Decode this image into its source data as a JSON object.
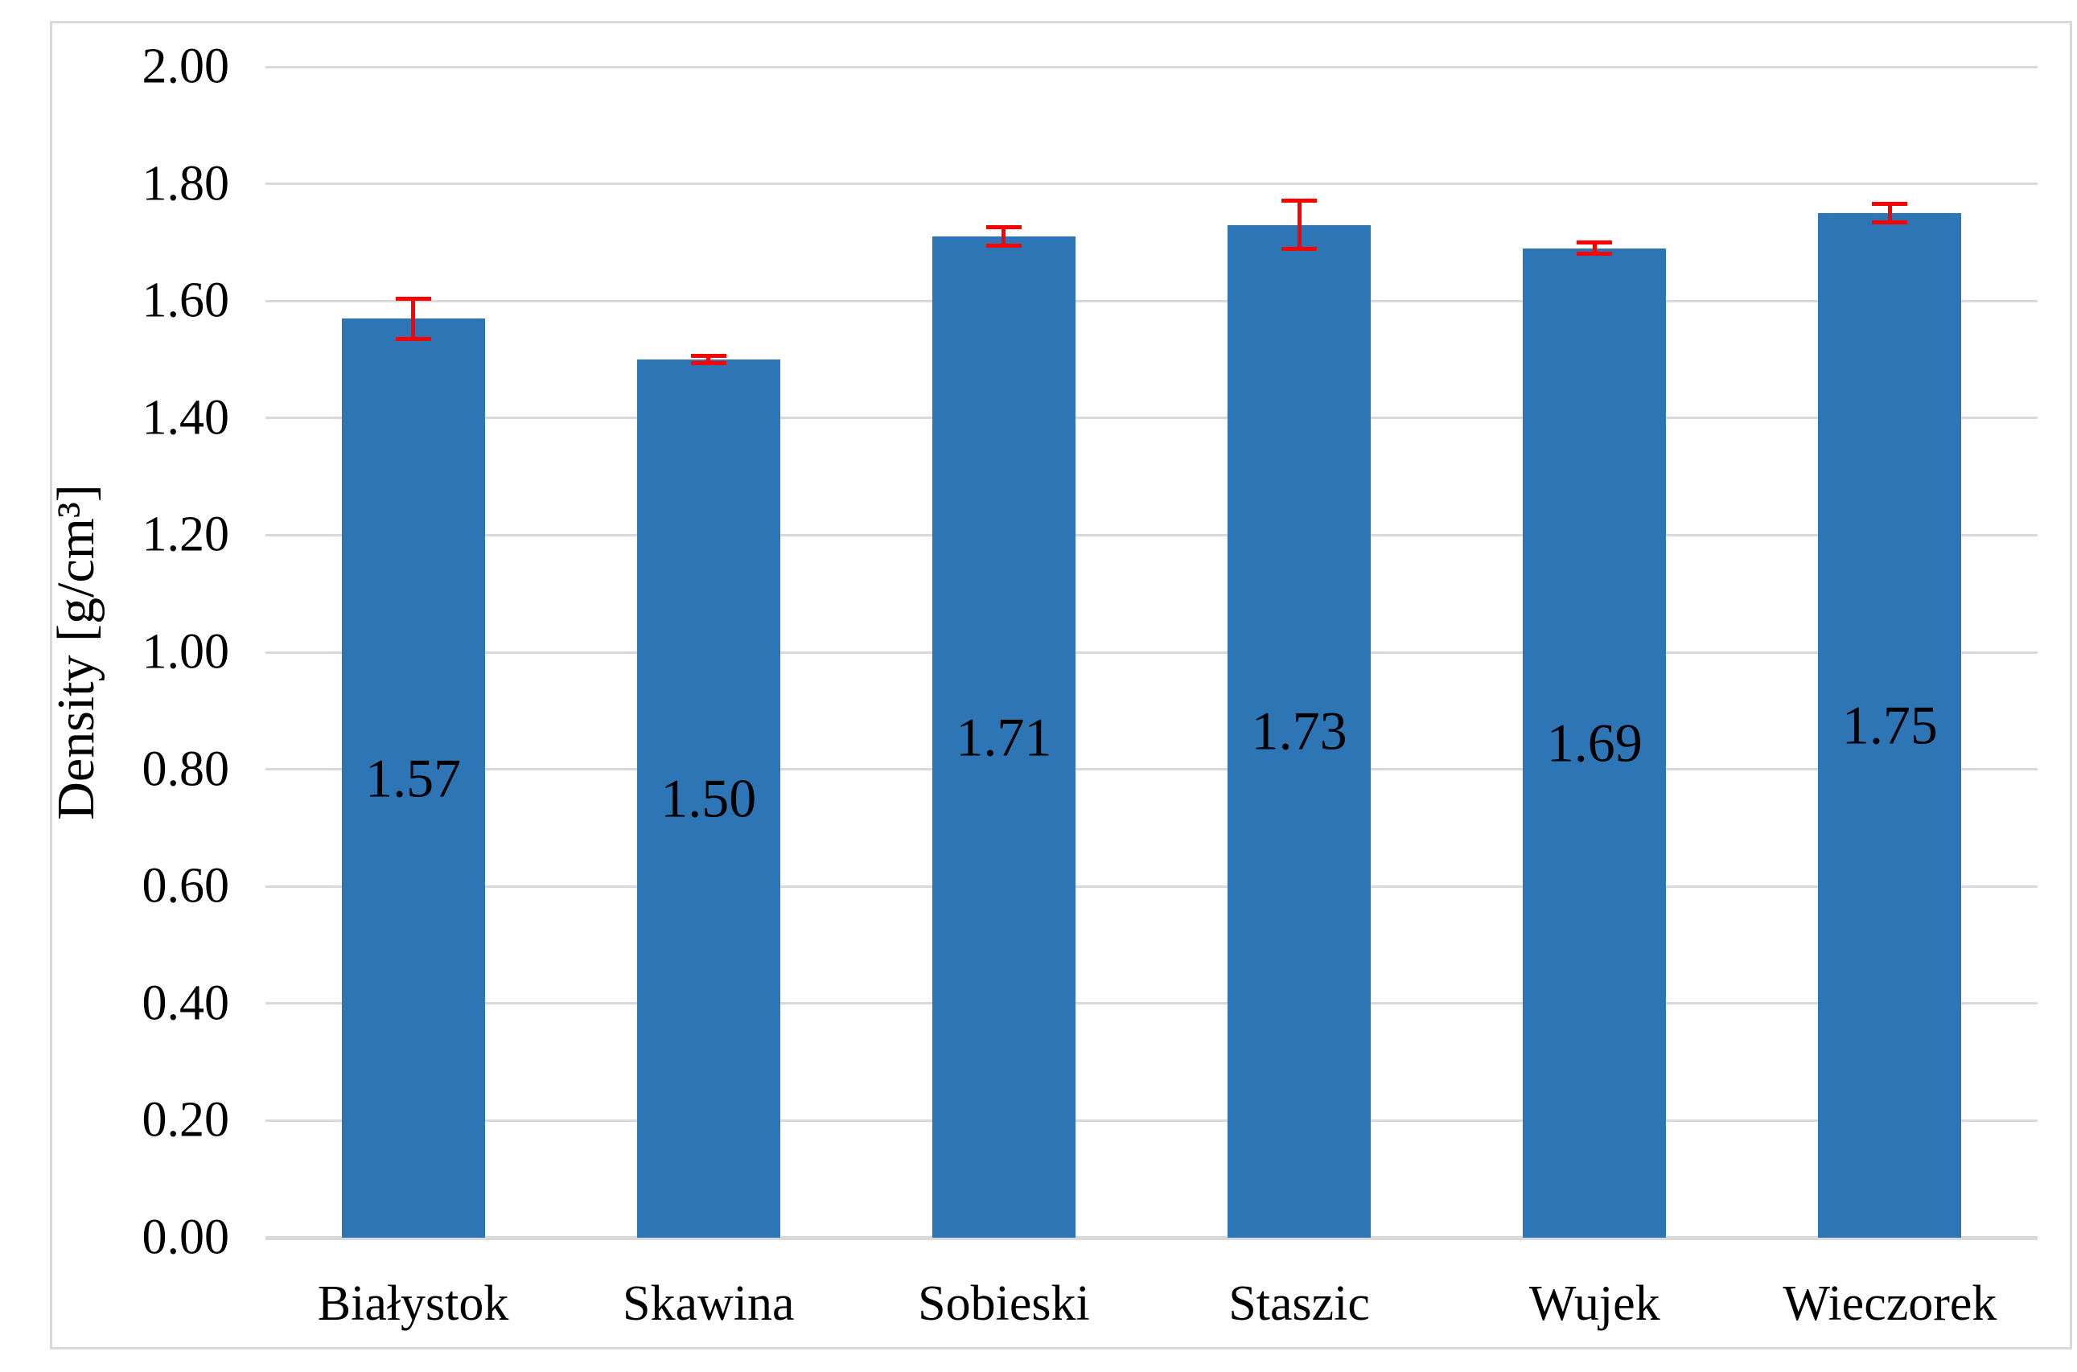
{
  "chart_data": {
    "type": "bar",
    "title": "",
    "xlabel": "",
    "ylabel": "Density [g/cm³]",
    "ylim": [
      0,
      2.0
    ],
    "grid": true,
    "legend": false,
    "yticks": [
      {
        "value": 0.0,
        "label": "0.00"
      },
      {
        "value": 0.2,
        "label": "0.20"
      },
      {
        "value": 0.4,
        "label": "0.40"
      },
      {
        "value": 0.6,
        "label": "0.60"
      },
      {
        "value": 0.8,
        "label": "0.80"
      },
      {
        "value": 1.0,
        "label": "1.00"
      },
      {
        "value": 1.2,
        "label": "1.20"
      },
      {
        "value": 1.4,
        "label": "1.40"
      },
      {
        "value": 1.6,
        "label": "1.60"
      },
      {
        "value": 1.8,
        "label": "1.80"
      },
      {
        "value": 2.0,
        "label": "2.00"
      }
    ],
    "categories": [
      "Białystok",
      "Skawina",
      "Sobieski",
      "Staszic",
      "Wujek",
      "Wieczorek"
    ],
    "values": [
      1.57,
      1.5,
      1.71,
      1.73,
      1.69,
      1.75
    ],
    "data_labels": [
      "1.57",
      "1.50",
      "1.71",
      "1.73",
      "1.69",
      "1.75"
    ],
    "errors": [
      0.035,
      0.007,
      0.016,
      0.042,
      0.01,
      0.016
    ],
    "error_bar_style": "plus-minus-with-caps",
    "colors": {
      "bar": "#2E75B6",
      "error_bar": "#FF0000",
      "gridline": "#D9D9D9",
      "axis_line": "#D9D9D9",
      "border": "#D9D9D9",
      "text": "#000000",
      "background": "#FFFFFF"
    }
  }
}
